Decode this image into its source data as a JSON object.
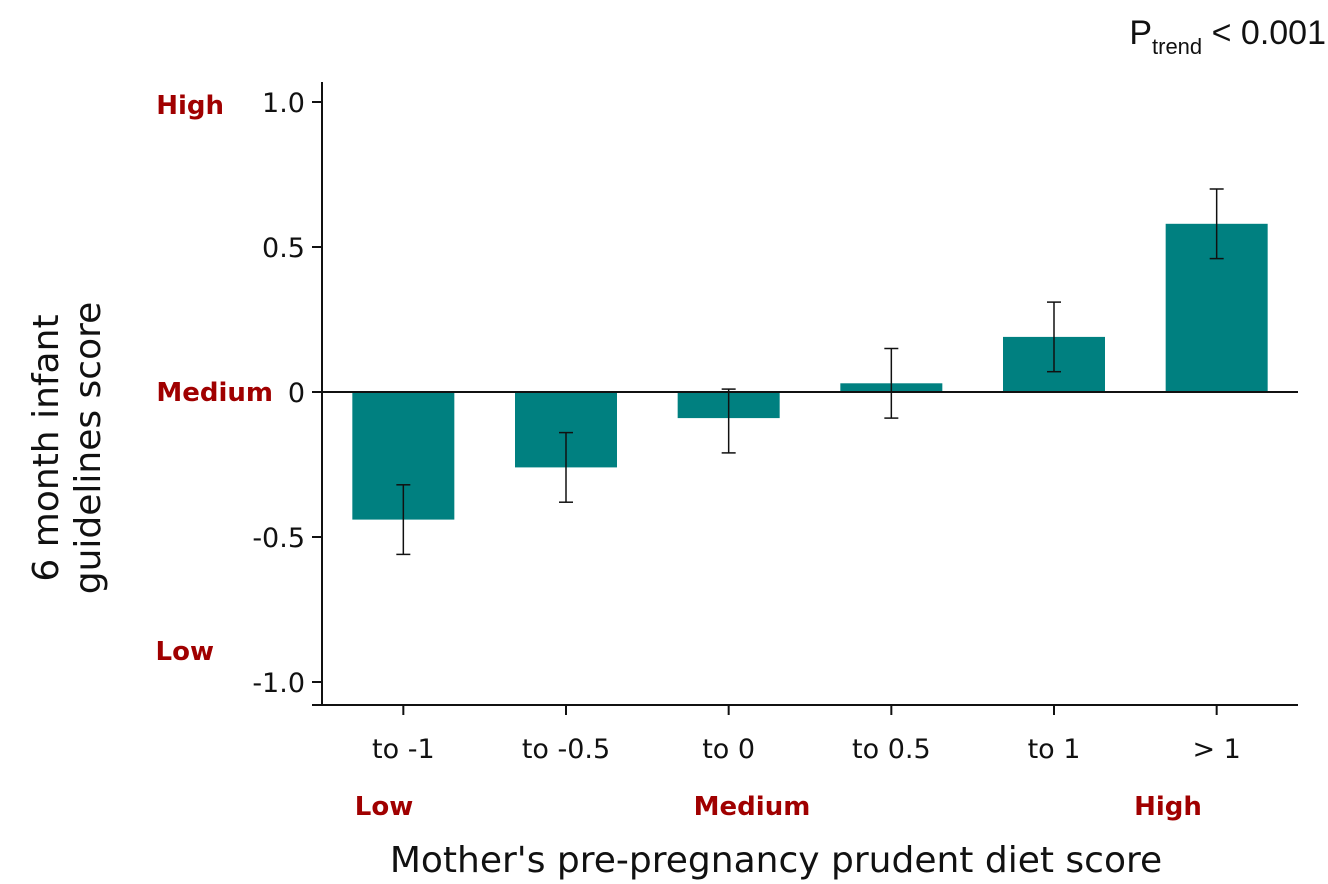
{
  "chart_data": {
    "type": "bar",
    "categories": [
      "to -1",
      "to -0.5",
      "to 0",
      "to 0.5",
      "to 1",
      "> 1"
    ],
    "values": [
      -0.44,
      -0.26,
      -0.09,
      0.03,
      0.19,
      0.58
    ],
    "error_low": [
      -0.56,
      -0.38,
      -0.21,
      -0.09,
      0.07,
      0.46
    ],
    "error_high": [
      -0.32,
      -0.14,
      0.01,
      0.15,
      0.31,
      0.7
    ],
    "color": "#008080",
    "ylim": [
      -1.0,
      1.0
    ],
    "yticks": [
      {
        "value": 1.0,
        "label": "1.0"
      },
      {
        "value": 0.5,
        "label": "0.5"
      },
      {
        "value": 0,
        "label": "0"
      },
      {
        "value": -0.5,
        "label": "-0.5"
      },
      {
        "value": -1.0,
        "label": "-1.0"
      }
    ],
    "ylabel": [
      "6 month infant",
      "guidelines score"
    ],
    "xlabel": "Mother's pre-pregnancy prudent diet score",
    "y_level_labels": {
      "high": "High",
      "medium": "Medium",
      "low": "Low"
    },
    "x_level_labels": {
      "low": "Low",
      "medium": "Medium",
      "high": "High"
    },
    "annotation": {
      "prefix": "P",
      "subscript": "trend",
      "suffix": " < 0.001"
    },
    "grid": false,
    "label_color": "#a00000"
  }
}
